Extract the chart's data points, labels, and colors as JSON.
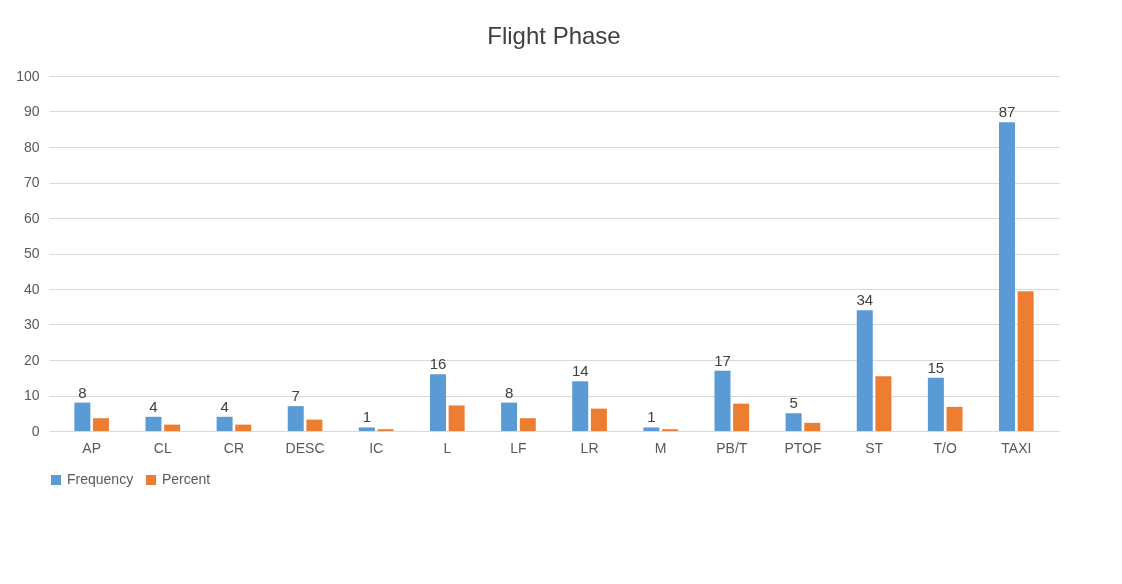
{
  "chart_data": {
    "type": "bar",
    "title": "Flight Phase",
    "categories": [
      "AP",
      "CL",
      "CR",
      "DESC",
      "IC",
      "L",
      "LF",
      "LR",
      "M",
      "PB/T",
      "PTOF",
      "ST",
      "T/O",
      "TAXI"
    ],
    "series": [
      {
        "name": "Frequency",
        "color": "#5b9bd5",
        "values": [
          8,
          4,
          4,
          7,
          1,
          16,
          8,
          14,
          1,
          17,
          5,
          34,
          15,
          87
        ],
        "value_labels": [
          "8",
          "4",
          "4",
          "7",
          "1",
          "16",
          "8",
          "14",
          "1",
          "17",
          "5",
          "34",
          "15",
          "87"
        ]
      },
      {
        "name": "Percent",
        "color": "#ed7d31",
        "values": [
          3.6,
          1.8,
          1.8,
          3.2,
          0.5,
          7.2,
          3.6,
          6.3,
          0.5,
          7.7,
          2.3,
          15.4,
          6.8,
          39.4
        ]
      }
    ],
    "ylim": [
      0,
      100
    ],
    "yticks": [
      0,
      10,
      20,
      30,
      40,
      50,
      60,
      70,
      80,
      90,
      100
    ],
    "grid": "y",
    "legend": "bottom"
  }
}
